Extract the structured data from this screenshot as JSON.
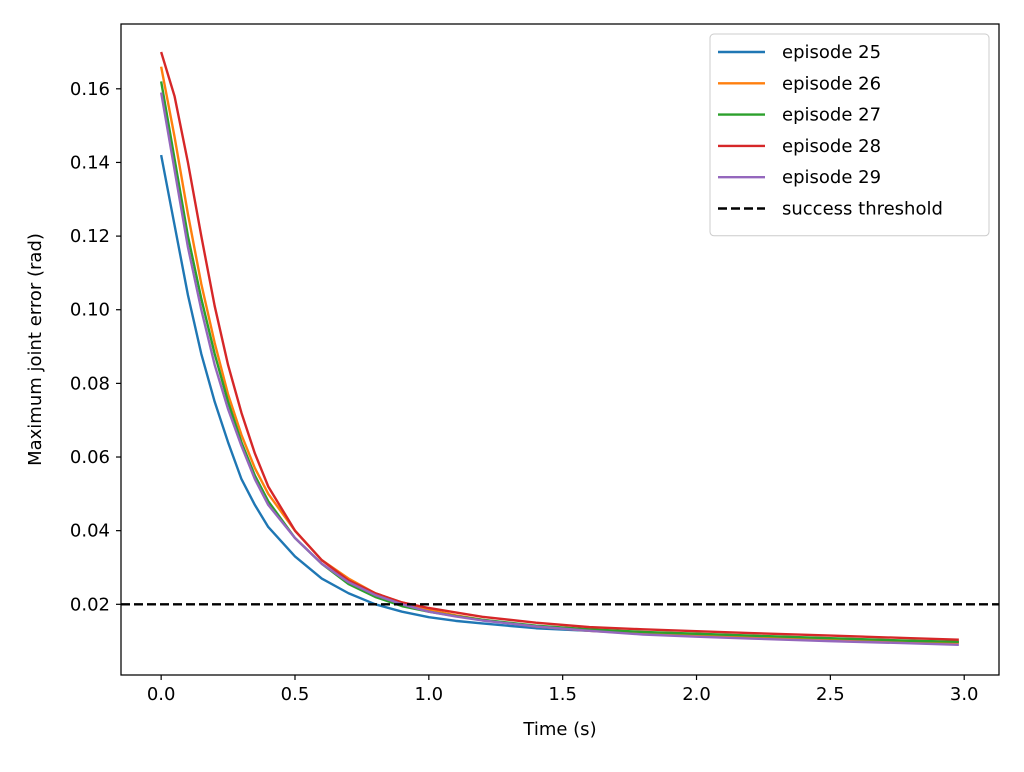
{
  "chart_data": {
    "type": "line",
    "title": "",
    "xlabel": "Time (s)",
    "ylabel": "Maximum joint error (rad)",
    "xlim": [
      -0.15,
      3.13
    ],
    "ylim": [
      0.0008,
      0.1776
    ],
    "xticks": [
      0.0,
      0.5,
      1.0,
      1.5,
      2.0,
      2.5,
      3.0
    ],
    "xtick_labels": [
      "0.0",
      "0.5",
      "1.0",
      "1.5",
      "2.0",
      "2.5",
      "3.0"
    ],
    "yticks": [
      0.02,
      0.04,
      0.06,
      0.08,
      0.1,
      0.12,
      0.14,
      0.16
    ],
    "ytick_labels": [
      "0.02",
      "0.04",
      "0.06",
      "0.08",
      "0.10",
      "0.12",
      "0.14",
      "0.16"
    ],
    "grid": false,
    "legend_position": "top-right",
    "x": [
      0.0,
      0.05,
      0.1,
      0.15,
      0.2,
      0.25,
      0.3,
      0.35,
      0.4,
      0.5,
      0.6,
      0.7,
      0.8,
      0.9,
      1.0,
      1.1,
      1.2,
      1.4,
      1.6,
      1.8,
      2.0,
      2.2,
      2.5,
      2.8,
      2.98
    ],
    "series": [
      {
        "name": "episode 25",
        "color": "#1f77b4",
        "values": [
          0.142,
          0.123,
          0.104,
          0.088,
          0.075,
          0.064,
          0.054,
          0.047,
          0.041,
          0.033,
          0.027,
          0.023,
          0.02,
          0.018,
          0.0165,
          0.0155,
          0.0148,
          0.0135,
          0.0128,
          0.0122,
          0.0117,
          0.0112,
          0.0106,
          0.01,
          0.0097
        ]
      },
      {
        "name": "episode 26",
        "color": "#ff7f0e",
        "values": [
          0.166,
          0.147,
          0.126,
          0.107,
          0.091,
          0.077,
          0.066,
          0.057,
          0.05,
          0.04,
          0.032,
          0.027,
          0.023,
          0.0205,
          0.0185,
          0.017,
          0.0158,
          0.014,
          0.0128,
          0.012,
          0.0115,
          0.011,
          0.0104,
          0.0098,
          0.0095
        ]
      },
      {
        "name": "episode 27",
        "color": "#2ca02c",
        "values": [
          0.162,
          0.141,
          0.12,
          0.103,
          0.088,
          0.075,
          0.064,
          0.055,
          0.048,
          0.038,
          0.031,
          0.0255,
          0.022,
          0.0195,
          0.018,
          0.0168,
          0.0158,
          0.0142,
          0.0132,
          0.0125,
          0.012,
          0.0115,
          0.0108,
          0.0101,
          0.0098
        ]
      },
      {
        "name": "episode 28",
        "color": "#d62728",
        "values": [
          0.17,
          0.158,
          0.14,
          0.12,
          0.101,
          0.085,
          0.072,
          0.061,
          0.052,
          0.04,
          0.032,
          0.0265,
          0.023,
          0.0205,
          0.019,
          0.0178,
          0.0166,
          0.015,
          0.0138,
          0.0132,
          0.0127,
          0.0122,
          0.0115,
          0.0108,
          0.0104
        ]
      },
      {
        "name": "episode 29",
        "color": "#9467bd",
        "values": [
          0.159,
          0.138,
          0.117,
          0.1,
          0.085,
          0.073,
          0.063,
          0.054,
          0.047,
          0.038,
          0.031,
          0.026,
          0.0225,
          0.02,
          0.018,
          0.0167,
          0.0156,
          0.014,
          0.0128,
          0.0118,
          0.0112,
          0.0107,
          0.01,
          0.0094,
          0.009
        ]
      }
    ],
    "reference_lines": [
      {
        "name": "success threshold",
        "orientation": "horizontal",
        "y": 0.02,
        "color": "#000000",
        "style": "dashed"
      }
    ]
  }
}
